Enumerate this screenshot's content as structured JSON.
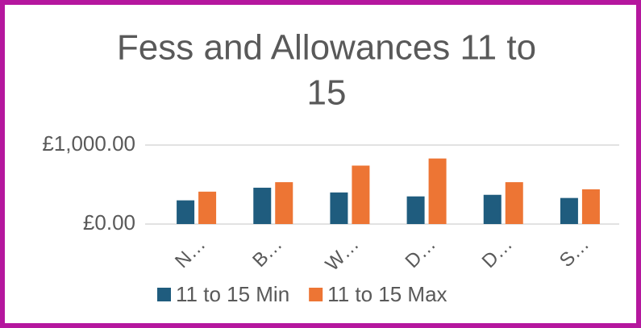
{
  "chart_data": {
    "type": "bar",
    "title": [
      "Fess and Allowances 11 to",
      "15"
    ],
    "categories": [
      "N…",
      "B…",
      "W…",
      "D…",
      "D…",
      "S…"
    ],
    "series": [
      {
        "name": "11 to 15 Min",
        "color": "#1f5c7e",
        "values": [
          300,
          460,
          400,
          350,
          370,
          330
        ]
      },
      {
        "name": "11 to 15 Max",
        "color": "#ed7534",
        "values": [
          410,
          530,
          740,
          830,
          530,
          440
        ]
      }
    ],
    "ylim": [
      0,
      1000
    ],
    "yticks": [
      {
        "value": 0,
        "label": "£0.00"
      },
      {
        "value": 1000,
        "label": "£1,000.00"
      }
    ],
    "grid": true,
    "legend": "bottom"
  }
}
